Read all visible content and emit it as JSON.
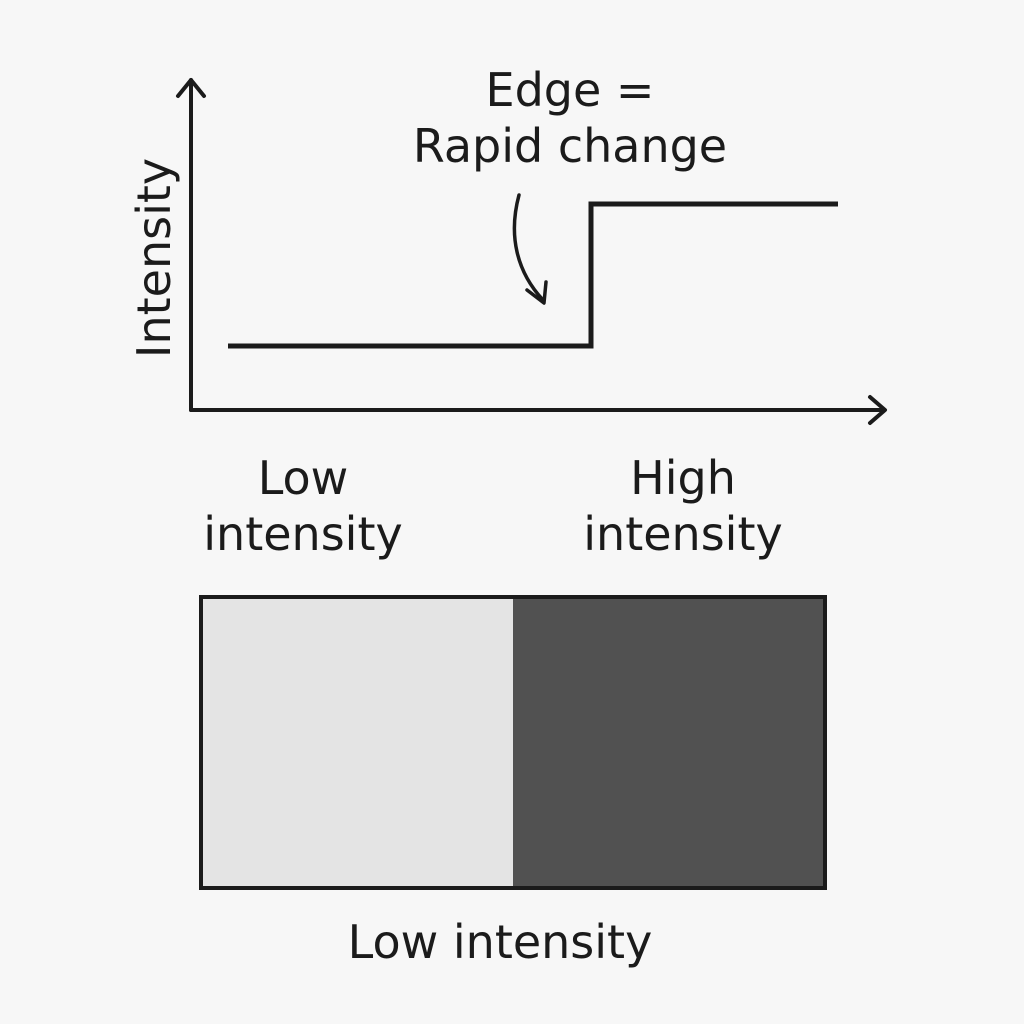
{
  "chart": {
    "y_axis_label": "Intensity",
    "callout_line1": "Edge =",
    "callout_line2": "Rapid change",
    "signal": {
      "low_level": "low",
      "high_level": "high",
      "transition": "step"
    }
  },
  "labels": {
    "low_line1": "Low",
    "low_line2": "intensity",
    "high_line1": "High",
    "high_line2": "intensity",
    "bottom": "Low intensity"
  },
  "colors": {
    "background": "#f7f7f7",
    "ink": "#1b1b1b",
    "light_region": "#e4e4e4",
    "dark_region": "#515151"
  }
}
